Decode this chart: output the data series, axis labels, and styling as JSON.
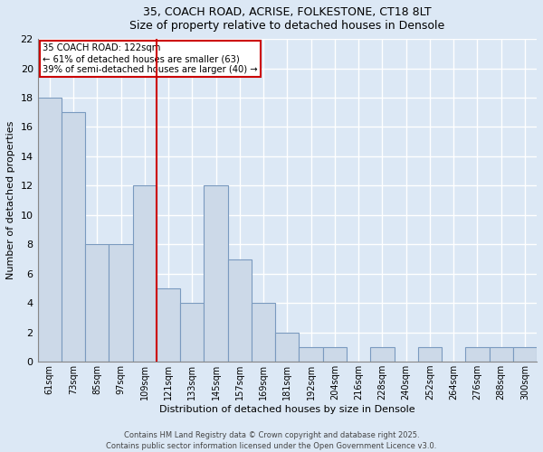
{
  "title_line1": "35, COACH ROAD, ACRISE, FOLKESTONE, CT18 8LT",
  "title_line2": "Size of property relative to detached houses in Densole",
  "xlabel": "Distribution of detached houses by size in Densole",
  "ylabel": "Number of detached properties",
  "categories": [
    "61sqm",
    "73sqm",
    "85sqm",
    "97sqm",
    "109sqm",
    "121sqm",
    "133sqm",
    "145sqm",
    "157sqm",
    "169sqm",
    "181sqm",
    "192sqm",
    "204sqm",
    "216sqm",
    "228sqm",
    "240sqm",
    "252sqm",
    "264sqm",
    "276sqm",
    "288sqm",
    "300sqm"
  ],
  "values": [
    18,
    17,
    8,
    8,
    12,
    5,
    4,
    12,
    7,
    4,
    2,
    1,
    1,
    0,
    1,
    0,
    1,
    0,
    1,
    1,
    1
  ],
  "bar_color": "#ccd9e8",
  "bar_edge_color": "#7a9abf",
  "vline_x": 5.0,
  "vline_color": "#cc0000",
  "annotation_text": "35 COACH ROAD: 122sqm\n← 61% of detached houses are smaller (63)\n39% of semi-detached houses are larger (40) →",
  "annotation_box_color": "#ffffff",
  "annotation_box_edge": "#cc0000",
  "ylim": [
    0,
    22
  ],
  "yticks": [
    0,
    2,
    4,
    6,
    8,
    10,
    12,
    14,
    16,
    18,
    20,
    22
  ],
  "background_color": "#dce8f5",
  "grid_color": "#ffffff",
  "footer_line1": "Contains HM Land Registry data © Crown copyright and database right 2025.",
  "footer_line2": "Contains public sector information licensed under the Open Government Licence v3.0."
}
